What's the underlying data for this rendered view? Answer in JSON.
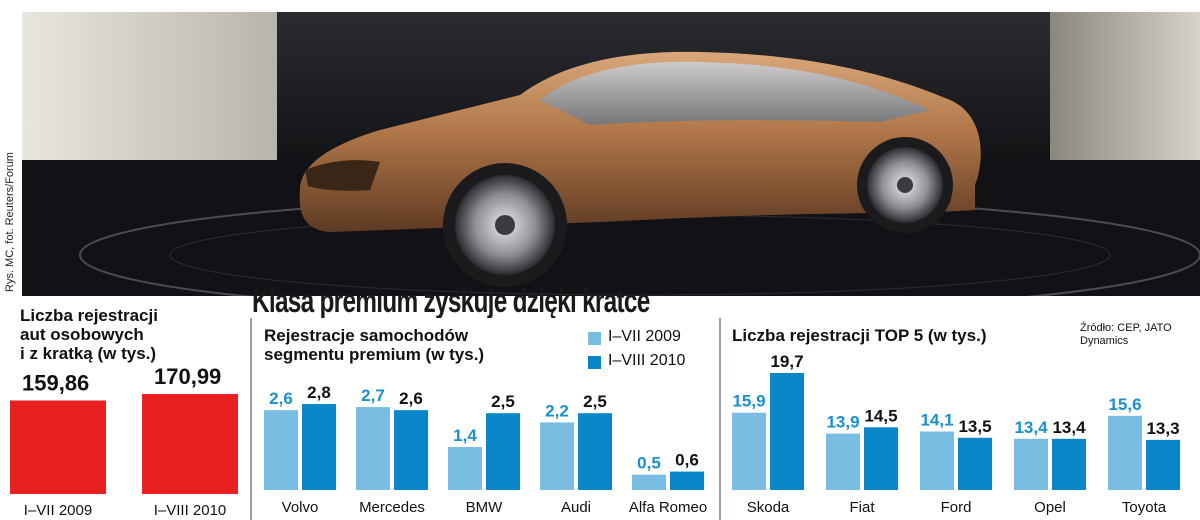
{
  "credit": "Rys. MC, fot. Reuters/Forum",
  "headline": "Klasa premium zyskuje dzięki kratce",
  "colors": {
    "red": "#e8201f",
    "light_blue": "#79bde3",
    "dark_blue": "#0a87c8",
    "blue_label": "#1a8fd0"
  },
  "chart_data": [
    {
      "type": "bar",
      "title": "Liczba rejestracji\naut osobowych\ni z kratką (w tys.)",
      "categories": [
        "I–VII 2009",
        "I–VIII 2010"
      ],
      "values": [
        159.86,
        170.99
      ],
      "labels": [
        "159,86",
        "170,99"
      ]
    },
    {
      "type": "bar",
      "title": "Rejestracje samochodów\nsegmentu premium (w tys.)",
      "categories": [
        "Volvo",
        "Mercedes",
        "BMW",
        "Audi",
        "Alfa Romeo"
      ],
      "series": [
        {
          "name": "I–VII 2009",
          "values": [
            2.6,
            2.7,
            1.4,
            2.2,
            0.5
          ],
          "labels": [
            "2,6",
            "2,7",
            "1,4",
            "2,2",
            "0,5"
          ]
        },
        {
          "name": "I–VIII 2010",
          "values": [
            2.8,
            2.6,
            2.5,
            2.5,
            0.6
          ],
          "labels": [
            "2,8",
            "2,6",
            "2,5",
            "2,5",
            "0,6"
          ]
        }
      ],
      "ylim": [
        0,
        3.5
      ]
    },
    {
      "type": "bar",
      "title": "Liczba rejestracji TOP 5 (w tys.)",
      "source": "Źródło: CEP, JATO Dynamics",
      "categories": [
        "Skoda",
        "Fiat",
        "Ford",
        "Opel",
        "Toyota"
      ],
      "series": [
        {
          "name": "I–VII 2009",
          "values": [
            15.9,
            13.9,
            14.1,
            13.4,
            15.6
          ],
          "labels": [
            "15,9",
            "13,9",
            "14,1",
            "13,4",
            "15,6"
          ]
        },
        {
          "name": "I–VIII 2010",
          "values": [
            19.7,
            14.5,
            13.5,
            13.4,
            13.3
          ],
          "labels": [
            "19,7",
            "14,5",
            "13,5",
            "13,4",
            "13,3"
          ]
        }
      ]
    }
  ]
}
